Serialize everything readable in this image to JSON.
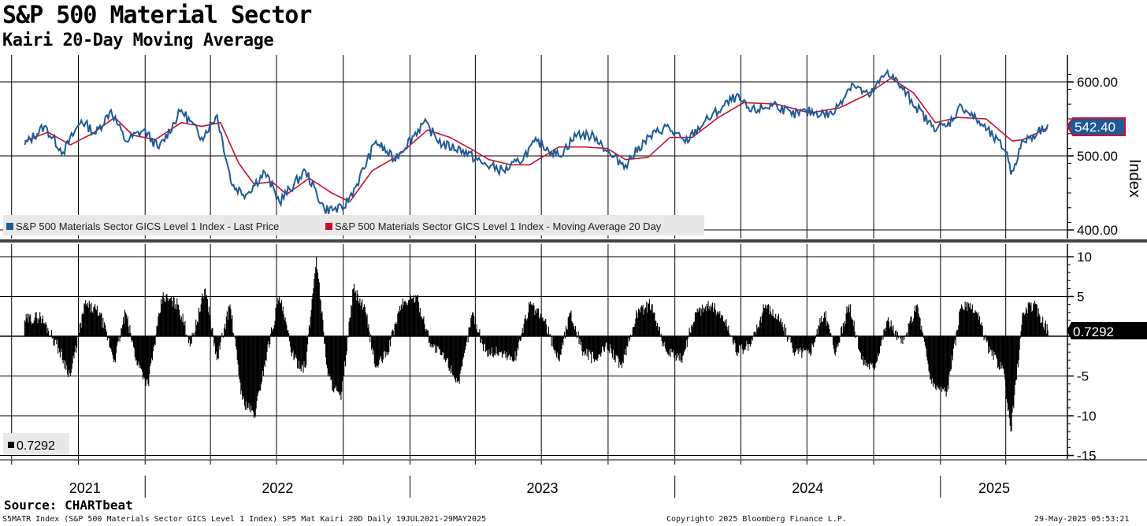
{
  "header": {
    "title": "S&P 500 Material Sector",
    "subtitle": "Kairi 20-Day Moving Average"
  },
  "footer": {
    "source": "Source: CHARTbeat",
    "ticker_line": "S5MATR Index (S&P 500 Materials Sector GICS Level 1 Index) SP5 Mat Kairi 20D  Daily 19JUL2021-29MAY2025",
    "copyright": "Copyright© 2025 Bloomberg Finance L.P.",
    "timestamp": "29-May-2025 05:53:21"
  },
  "colors": {
    "price": "#1f5a96",
    "moving_average": "#c8102e",
    "kairi": "#000000",
    "grid": "#000000"
  },
  "chart_data": [
    {
      "type": "line",
      "panel": "price",
      "ylabel": "Index",
      "ylim": [
        400,
        620
      ],
      "yticks": [
        "600.00",
        "500.00",
        "400.00"
      ],
      "ytick_values": [
        600,
        500,
        400
      ],
      "x_years": [
        "2021",
        "2022",
        "2023",
        "2024",
        "2025"
      ],
      "x_range": [
        "19JUL2021",
        "29MAY2025"
      ],
      "last_value_label": "542.40",
      "legend_position": "bottom-left",
      "series": [
        {
          "name": "S&P 500 Materials Sector GICS Level 1 Index - Last Price",
          "x": [
            "2021-07-19",
            "2021-08-15",
            "2021-09-10",
            "2021-10-05",
            "2021-10-25",
            "2021-11-15",
            "2021-12-05",
            "2021-12-30",
            "2022-01-20",
            "2022-02-20",
            "2022-03-20",
            "2022-04-10",
            "2022-05-01",
            "2022-05-20",
            "2022-06-15",
            "2022-07-05",
            "2022-08-10",
            "2022-09-05",
            "2022-09-30",
            "2022-10-20",
            "2022-11-15",
            "2022-12-10",
            "2023-01-20",
            "2023-02-15",
            "2023-03-15",
            "2023-04-10",
            "2023-05-10",
            "2023-05-31",
            "2023-06-25",
            "2023-07-25",
            "2023-08-20",
            "2023-09-15",
            "2023-10-05",
            "2023-10-25",
            "2023-11-20",
            "2023-12-20",
            "2024-01-15",
            "2024-02-10",
            "2024-03-25",
            "2024-04-15",
            "2024-05-20",
            "2024-06-10",
            "2024-06-30",
            "2024-08-05",
            "2024-09-01",
            "2024-09-25",
            "2024-10-20",
            "2024-11-10",
            "2024-12-20",
            "2025-01-10",
            "2025-01-30",
            "2025-03-01",
            "2025-04-03",
            "2025-04-08",
            "2025-04-25",
            "2025-05-15",
            "2025-05-29"
          ],
          "values": [
            515,
            540,
            505,
            548,
            530,
            562,
            520,
            535,
            510,
            562,
            525,
            555,
            460,
            448,
            478,
            438,
            480,
            428,
            428,
            462,
            520,
            495,
            545,
            515,
            508,
            490,
            480,
            492,
            520,
            500,
            530,
            525,
            500,
            488,
            520,
            540,
            518,
            545,
            580,
            560,
            570,
            555,
            560,
            556,
            598,
            580,
            615,
            590,
            540,
            540,
            568,
            540,
            505,
            475,
            520,
            532,
            542.4
          ]
        },
        {
          "name": "S&P 500 Materials Sector GICS Level 1 Index - Moving Average 20 Day",
          "x": [
            "2021-07-19",
            "2021-08-20",
            "2021-09-20",
            "2021-10-20",
            "2021-11-20",
            "2021-12-15",
            "2022-01-15",
            "2022-02-20",
            "2022-03-20",
            "2022-04-15",
            "2022-05-10",
            "2022-05-31",
            "2022-06-25",
            "2022-07-15",
            "2022-08-15",
            "2022-09-15",
            "2022-10-10",
            "2022-11-10",
            "2022-12-15",
            "2023-01-25",
            "2023-02-25",
            "2023-03-25",
            "2023-04-20",
            "2023-05-20",
            "2023-06-15",
            "2023-07-25",
            "2023-08-30",
            "2023-09-30",
            "2023-10-25",
            "2023-11-25",
            "2023-12-25",
            "2024-01-25",
            "2024-03-01",
            "2024-04-05",
            "2024-05-20",
            "2024-07-05",
            "2024-08-15",
            "2024-09-20",
            "2024-10-25",
            "2024-11-25",
            "2024-12-25",
            "2025-01-25",
            "2025-03-05",
            "2025-04-10",
            "2025-04-25",
            "2025-05-29"
          ],
          "values": [
            520,
            532,
            515,
            530,
            552,
            528,
            522,
            545,
            540,
            545,
            490,
            462,
            465,
            448,
            470,
            450,
            438,
            480,
            500,
            535,
            525,
            510,
            495,
            488,
            488,
            512,
            512,
            510,
            495,
            498,
            525,
            525,
            552,
            572,
            570,
            558,
            565,
            582,
            605,
            585,
            545,
            552,
            550,
            520,
            522,
            538
          ]
        }
      ]
    },
    {
      "type": "bar",
      "panel": "kairi",
      "ylim": [
        -15,
        11
      ],
      "yticks": [
        "10",
        "5",
        "0",
        "-5",
        "-10",
        "-15"
      ],
      "ytick_values": [
        10,
        5,
        0,
        -5,
        -10,
        -15
      ],
      "last_value_label": "0.7292",
      "legend_value": "0.7292",
      "series": [
        {
          "name": "SP5 Mat Kairi 20D",
          "x": [
            "2021-07-19",
            "2021-08-10",
            "2021-09-01",
            "2021-09-20",
            "2021-10-10",
            "2021-10-30",
            "2021-11-20",
            "2021-12-05",
            "2021-12-20",
            "2022-01-05",
            "2022-01-25",
            "2022-02-15",
            "2022-03-05",
            "2022-03-25",
            "2022-04-10",
            "2022-04-28",
            "2022-05-15",
            "2022-06-01",
            "2022-06-18",
            "2022-07-05",
            "2022-07-25",
            "2022-08-10",
            "2022-08-25",
            "2022-09-10",
            "2022-09-28",
            "2022-10-15",
            "2022-11-01",
            "2022-11-15",
            "2022-12-01",
            "2022-12-20",
            "2023-01-10",
            "2023-01-30",
            "2023-02-20",
            "2023-03-10",
            "2023-03-28",
            "2023-04-15",
            "2023-05-05",
            "2023-05-25",
            "2023-06-15",
            "2023-07-05",
            "2023-07-25",
            "2023-08-10",
            "2023-08-28",
            "2023-09-15",
            "2023-10-01",
            "2023-10-20",
            "2023-11-10",
            "2023-11-30",
            "2023-12-20",
            "2024-01-10",
            "2024-01-30",
            "2024-02-20",
            "2024-03-10",
            "2024-03-28",
            "2024-04-15",
            "2024-05-05",
            "2024-05-25",
            "2024-06-15",
            "2024-07-05",
            "2024-07-25",
            "2024-08-10",
            "2024-08-28",
            "2024-09-15",
            "2024-10-01",
            "2024-10-20",
            "2024-11-10",
            "2024-11-30",
            "2024-12-20",
            "2025-01-10",
            "2025-01-30",
            "2025-02-20",
            "2025-03-10",
            "2025-03-28",
            "2025-04-08",
            "2025-04-25",
            "2025-05-10",
            "2025-05-29"
          ],
          "values": [
            2,
            2.5,
            -1,
            -5,
            4,
            3,
            -3,
            3,
            -3,
            -6,
            5,
            4,
            -1,
            6,
            -3,
            4,
            -8,
            -10,
            -2,
            5,
            -3,
            -4,
            10,
            -5,
            -8,
            6,
            3,
            -4,
            -2,
            4,
            5,
            -1,
            -3,
            -6,
            3,
            -2,
            -2,
            -3,
            4,
            2,
            -3,
            3,
            -2,
            -3,
            -1,
            -4,
            3,
            4,
            -2,
            -3,
            3,
            4,
            2,
            -2,
            -1,
            4,
            2,
            -2,
            -2,
            3,
            -2,
            4,
            -3,
            -4,
            2,
            -1,
            4,
            -6,
            -7,
            4,
            3,
            -2,
            -4,
            -12,
            3,
            4,
            0.7292
          ]
        }
      ]
    }
  ]
}
